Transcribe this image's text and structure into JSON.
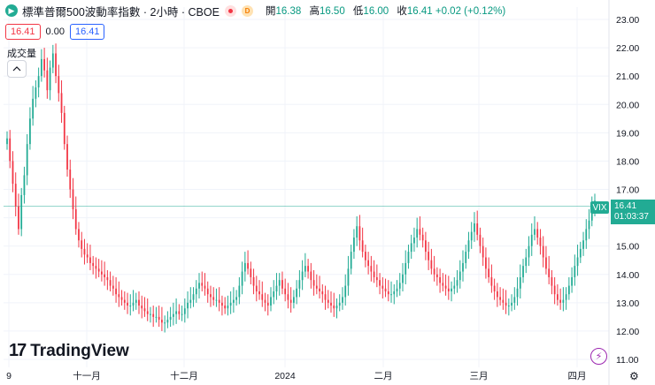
{
  "header": {
    "title": "標準普爾500波動率指數 · 2小時 · CBOE",
    "symbol_badge": "play-icon",
    "badge_d": "D",
    "ohlc": [
      {
        "label": "開",
        "value": "16.38"
      },
      {
        "label": "高",
        "value": "16.50"
      },
      {
        "label": "低",
        "value": "16.00"
      },
      {
        "label": "收",
        "value": "16.41 +0.02 (+0.12%)"
      }
    ]
  },
  "prices": {
    "bid": "16.41",
    "spread": "0.00",
    "ask": "16.41"
  },
  "volume_label": "成交量",
  "logo_text": "TradingView",
  "last_price": {
    "symbol": "VIX",
    "price": "16.41",
    "countdown": "01:03:37"
  },
  "colors": {
    "up": "#22ab94",
    "down": "#f23645",
    "grid": "#f0f3fa",
    "last_line": "#22ab94"
  },
  "chart_data": {
    "type": "candlestick",
    "ylim": [
      11.0,
      23.0
    ],
    "y_ticks": [
      "23.00",
      "22.00",
      "21.00",
      "20.00",
      "19.00",
      "18.00",
      "17.00",
      "16.00",
      "15.00",
      "14.00",
      "13.00",
      "12.00",
      "11.00"
    ],
    "x_ticks": [
      "9",
      "十一月",
      "十二月",
      "2024",
      "二月",
      "三月",
      "四月"
    ],
    "last_value": 16.41,
    "series": [
      {
        "values": [
          18.8,
          18.0,
          17.2,
          16.4,
          15.6,
          16.8,
          17.5,
          18.6,
          19.5,
          20.2,
          20.6,
          21.0,
          21.6,
          21.2,
          20.5,
          21.3,
          21.8,
          21.0,
          20.4,
          19.7,
          18.6,
          17.7,
          17.0,
          16.3,
          15.6,
          15.2,
          14.9,
          14.7,
          14.6,
          14.4,
          14.3,
          14.2,
          14.1,
          14.0,
          13.9,
          13.8,
          13.6,
          13.5,
          13.3,
          13.2,
          13.1,
          13.0,
          12.9,
          12.9,
          13.0,
          13.1,
          12.9,
          12.8,
          12.7,
          12.6,
          12.6,
          12.5,
          12.5,
          12.4,
          12.3,
          12.3,
          12.4,
          12.5,
          12.6,
          12.7,
          12.6,
          12.6,
          12.8,
          13.0,
          13.1,
          13.3,
          13.5,
          13.7,
          13.6,
          13.5,
          13.3,
          13.2,
          13.1,
          13.1,
          13.0,
          12.9,
          12.8,
          12.9,
          13.0,
          13.1,
          13.2,
          13.6,
          14.1,
          14.4,
          14.2,
          13.9,
          13.6,
          13.4,
          13.3,
          13.1,
          13.0,
          12.9,
          13.2,
          13.4,
          13.6,
          13.8,
          13.5,
          13.3,
          13.1,
          13.0,
          13.2,
          13.5,
          13.8,
          14.1,
          14.3,
          14.1,
          13.8,
          13.6,
          13.5,
          13.4,
          13.3,
          13.1,
          13.0,
          12.9,
          12.8,
          12.9,
          13.0,
          13.2,
          13.6,
          14.2,
          14.8,
          15.3,
          15.7,
          15.2,
          14.8,
          14.5,
          14.3,
          14.1,
          13.9,
          13.8,
          13.6,
          13.5,
          13.4,
          13.3,
          13.3,
          13.4,
          13.5,
          13.7,
          14.0,
          14.4,
          14.8,
          15.1,
          15.3,
          15.6,
          15.4,
          15.2,
          14.8,
          14.5,
          14.2,
          14.0,
          13.9,
          13.7,
          13.6,
          13.5,
          13.4,
          13.5,
          13.6,
          13.8,
          14.1,
          14.4,
          14.8,
          15.2,
          15.5,
          15.8,
          15.4,
          15.0,
          14.6,
          14.2,
          13.9,
          13.6,
          13.4,
          13.2,
          13.1,
          13.0,
          12.9,
          12.9,
          13.0,
          13.2,
          13.5,
          13.9,
          14.3,
          14.6,
          15.0,
          15.4,
          15.6,
          15.3,
          15.0,
          14.6,
          14.2,
          13.9,
          13.6,
          13.3,
          13.1,
          13.0,
          13.1,
          13.3,
          13.6,
          13.9,
          14.3,
          14.6,
          14.9,
          15.2,
          15.6,
          15.9,
          16.3,
          16.6
        ]
      }
    ]
  }
}
